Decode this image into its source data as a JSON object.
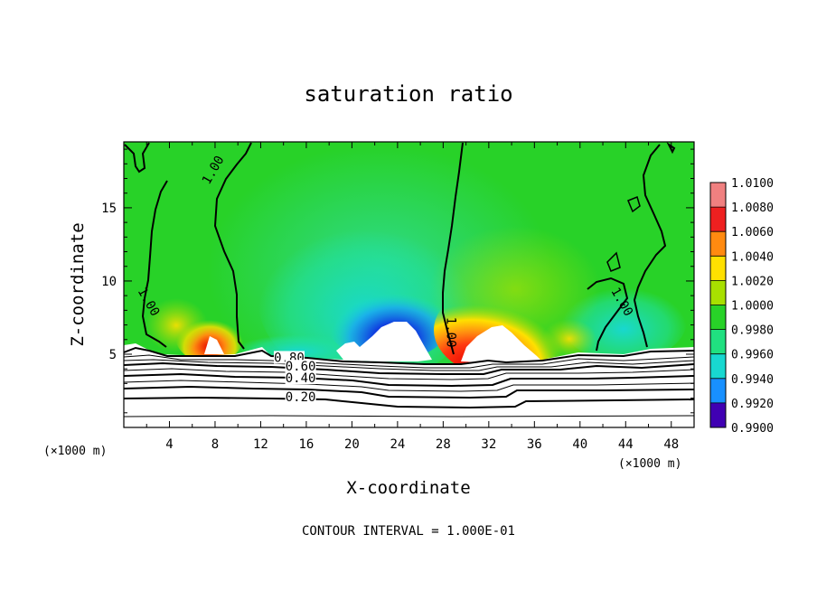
{
  "chart_data": {
    "type": "heatmap",
    "title": "saturation ratio",
    "xlabel": "X-coordinate",
    "ylabel": "Z-coordinate",
    "x_units": "(×1000 m)",
    "y_units": "(×1000 m)",
    "xlim": [
      0,
      50
    ],
    "ylim": [
      0,
      19.5
    ],
    "x_ticks": [
      4,
      8,
      12,
      16,
      20,
      24,
      28,
      32,
      36,
      40,
      44,
      48
    ],
    "y_ticks": [
      5,
      10,
      15
    ],
    "colorbar": {
      "levels": [
        "1.0100",
        "1.0080",
        "1.0060",
        "1.0040",
        "1.0020",
        "1.0000",
        "0.9980",
        "0.9960",
        "0.9940",
        "0.9920",
        "0.9900"
      ],
      "colors": [
        "#f08080",
        "#ee2020",
        "#ff8a10",
        "#ffe000",
        "#a8e000",
        "#28d228",
        "#20e080",
        "#18d8d0",
        "#1890ff",
        "#0000d0",
        "#6a00a0"
      ]
    },
    "contour_labels": [
      {
        "text": "1.00",
        "x": 8.0,
        "y": 17.5
      },
      {
        "text": "1.00",
        "x": 2.0,
        "y": 8.5
      },
      {
        "text": "1.00",
        "x": 28.5,
        "y": 6.5
      },
      {
        "text": "1.00",
        "x": 43.5,
        "y": 8.5
      },
      {
        "text": "0.80",
        "x": 14.5,
        "y": 4.6
      },
      {
        "text": "0.60",
        "x": 15.5,
        "y": 4.0
      },
      {
        "text": "0.40",
        "x": 15.5,
        "y": 3.2
      },
      {
        "text": "0.20",
        "x": 15.5,
        "y": 1.9
      }
    ],
    "footer": "CONTOUR INTERVAL = 1.000E-01"
  }
}
